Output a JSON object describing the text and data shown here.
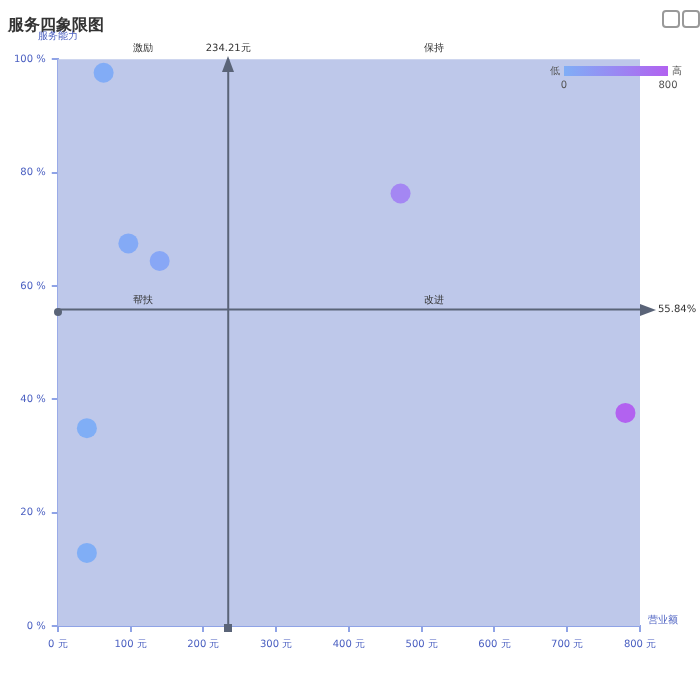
{
  "chart_data": {
    "type": "scatter",
    "title": "服务四象限图",
    "xlabel": "营业额",
    "ylabel": "服务能力",
    "xlim": [
      0,
      800
    ],
    "xticks": [
      {
        "value": 0,
        "label": "0 元"
      },
      {
        "value": 100,
        "label": "100 元"
      },
      {
        "value": 200,
        "label": "200 元"
      },
      {
        "value": 300,
        "label": "300 元"
      },
      {
        "value": 400,
        "label": "400 元"
      },
      {
        "value": 500,
        "label": "500 元"
      },
      {
        "value": 600,
        "label": "600 元"
      },
      {
        "value": 700,
        "label": "700 元"
      },
      {
        "value": 800,
        "label": "800 元"
      }
    ],
    "ylim": [
      0,
      100
    ],
    "yticks": [
      {
        "value": 0,
        "label": "0 %"
      },
      {
        "value": 20,
        "label": "20 %"
      },
      {
        "value": 40,
        "label": "40 %"
      },
      {
        "value": 60,
        "label": "60 %"
      },
      {
        "value": 80,
        "label": "80 %"
      },
      {
        "value": 100,
        "label": "100 %"
      }
    ],
    "series": [
      {
        "x": [
          63,
          97,
          140,
          471,
          40,
          40,
          780
        ],
        "values": [
          97.6,
          67.5,
          64.4,
          76.3,
          34.9,
          12.9,
          37.6
        ],
        "colors": [
          "#82acf6",
          "#84aaf6",
          "#88a7f6",
          "#a487f3",
          "#80aef6",
          "#80aef6",
          "#b262f0"
        ]
      }
    ],
    "marker": "circle",
    "grid": false,
    "legend": false,
    "ref_lines": [
      {
        "axis": "x",
        "value": 234.21,
        "label": "234.21元",
        "color": "#5a6478"
      },
      {
        "axis": "y",
        "value": 55.84,
        "label": "55.84%",
        "color": "#5a6478"
      }
    ],
    "annotations": [
      "激励",
      "保持",
      "帮扶",
      "改进",
      "低",
      "高",
      "0",
      "800"
    ]
  }
}
